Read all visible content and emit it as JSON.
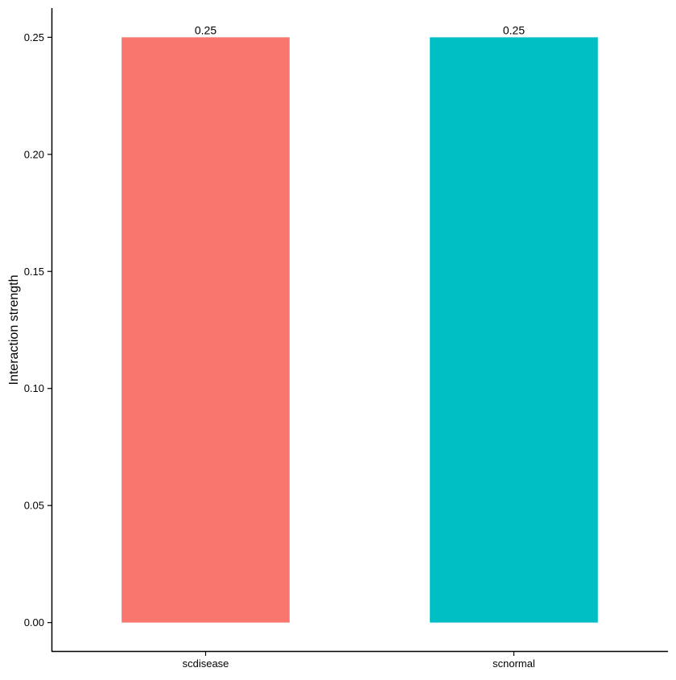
{
  "chart_data": {
    "type": "bar",
    "title": "",
    "xlabel": "",
    "ylabel": "Interaction strength",
    "categories": [
      "scdisease",
      "scnormal"
    ],
    "values": [
      0.25,
      0.25
    ],
    "value_labels": [
      "0.25",
      "0.25"
    ],
    "colors": [
      "#F8766D",
      "#00BFC4"
    ],
    "ylim": [
      -0.0125,
      0.2625
    ],
    "yticks": [
      0.0,
      0.05,
      0.1,
      0.15,
      0.2,
      0.25
    ],
    "ytick_labels": [
      "0.00",
      "0.05",
      "0.10",
      "0.15",
      "0.20",
      "0.25"
    ],
    "grid": false,
    "legend": "none"
  }
}
